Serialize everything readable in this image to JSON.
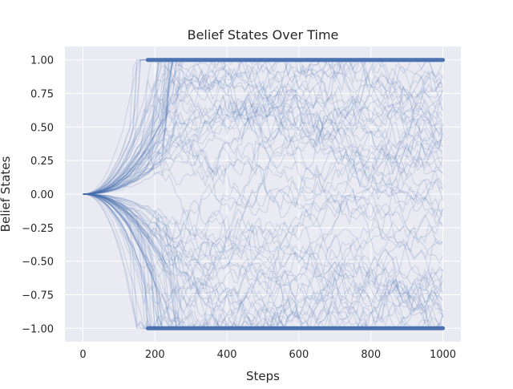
{
  "chart_data": {
    "type": "line",
    "title": "Belief States Over Time",
    "xlabel": "Steps",
    "ylabel": "Belief States",
    "xlim": [
      -50,
      1050
    ],
    "ylim": [
      -1.1,
      1.1
    ],
    "xticks": [
      0,
      200,
      400,
      600,
      800,
      1000
    ],
    "yticks": [
      -1.0,
      -0.75,
      -0.5,
      -0.25,
      0.0,
      0.25,
      0.5,
      0.75,
      1.0
    ],
    "xtick_labels": [
      "0",
      "200",
      "400",
      "600",
      "800",
      "1000"
    ],
    "ytick_labels": [
      "−1.00",
      "−0.75",
      "−0.50",
      "−0.25",
      "0.00",
      "0.25",
      "0.50",
      "0.75",
      "1.00"
    ],
    "grid": true,
    "series_color": "#4c72b0",
    "background_color": "#eaeaf2",
    "gridline_color": "#ffffff",
    "steps": 1000,
    "initial_value": 0.0,
    "bounds": [
      -1.0,
      1.0
    ],
    "num_trajectories": 120,
    "line_alpha": 0.08,
    "saturation_onset_range": [
      150,
      300
    ]
  }
}
